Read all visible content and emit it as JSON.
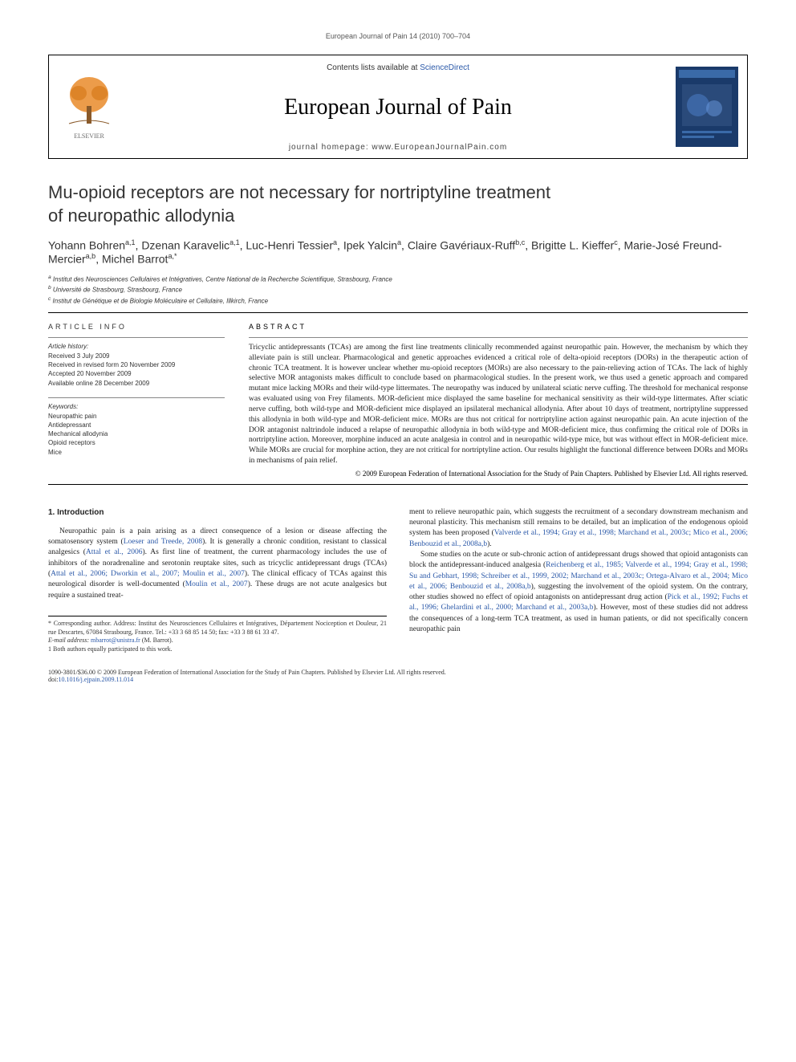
{
  "running_header": "European Journal of Pain 14 (2010) 700–704",
  "masthead": {
    "contents_prefix": "Contents lists available at ",
    "contents_link": "ScienceDirect",
    "journal_title": "European Journal of Pain",
    "homepage_label": "journal homepage: www.EuropeanJournalPain.com",
    "elsevier_tree_color": "#e98b2a",
    "elsevier_text_color": "#6b6b6b",
    "cover_bg": "#1a3a6a",
    "cover_accent": "#3a6aa8"
  },
  "article": {
    "title_line1": "Mu-opioid receptors are not necessary for nortriptyline treatment",
    "title_line2": "of neuropathic allodynia",
    "authors_html": "Yohann Bohren<sup>a,1</sup>, Dzenan Karavelic<sup>a,1</sup>, Luc-Henri Tessier<sup>a</sup>, Ipek Yalcin<sup>a</sup>, Claire Gavériaux-Ruff<sup>b,c</sup>, Brigitte L. Kieffer<sup>c</sup>, Marie-José Freund-Mercier<sup>a,b</sup>, Michel Barrot<sup>a,*</sup>",
    "affiliations": [
      "a Institut des Neurosciences Cellulaires et Intégratives, Centre National de la Recherche Scientifique, Strasbourg, France",
      "b Université de Strasbourg, Strasbourg, France",
      "c Institut de Génétique et de Biologie Moléculaire et Cellulaire, Illkirch, France"
    ]
  },
  "info": {
    "label": "ARTICLE INFO",
    "history_label": "Article history:",
    "dates": [
      "Received 3 July 2009",
      "Received in revised form 20 November 2009",
      "Accepted 20 November 2009",
      "Available online 28 December 2009"
    ],
    "kw_label": "Keywords:",
    "keywords": [
      "Neuropathic pain",
      "Antidepressant",
      "Mechanical allodynia",
      "Opioid receptors",
      "Mice"
    ]
  },
  "abstract": {
    "label": "ABSTRACT",
    "text": "Tricyclic antidepressants (TCAs) are among the first line treatments clinically recommended against neuropathic pain. However, the mechanism by which they alleviate pain is still unclear. Pharmacological and genetic approaches evidenced a critical role of delta-opioid receptors (DORs) in the therapeutic action of chronic TCA treatment. It is however unclear whether mu-opioid receptors (MORs) are also necessary to the pain-relieving action of TCAs. The lack of highly selective MOR antagonists makes difficult to conclude based on pharmacological studies. In the present work, we thus used a genetic approach and compared mutant mice lacking MORs and their wild-type littermates. The neuropathy was induced by unilateral sciatic nerve cuffing. The threshold for mechanical response was evaluated using von Frey filaments. MOR-deficient mice displayed the same baseline for mechanical sensitivity as their wild-type littermates. After sciatic nerve cuffing, both wild-type and MOR-deficient mice displayed an ipsilateral mechanical allodynia. After about 10 days of treatment, nortriptyline suppressed this allodynia in both wild-type and MOR-deficient mice. MORs are thus not critical for nortriptyline action against neuropathic pain. An acute injection of the DOR antagonist naltrindole induced a relapse of neuropathic allodynia in both wild-type and MOR-deficient mice, thus confirming the critical role of DORs in nortriptyline action. Moreover, morphine induced an acute analgesia in control and in neuropathic wild-type mice, but was without effect in MOR-deficient mice. While MORs are crucial for morphine action, they are not critical for nortriptyline action. Our results highlight the functional difference between DORs and MORs in mechanisms of pain relief.",
    "copyright": "© 2009 European Federation of International Association for the Study of Pain Chapters. Published by Elsevier Ltd. All rights reserved."
  },
  "body": {
    "section1_heading": "1. Introduction",
    "col1_p1_a": "Neuropathic pain is a pain arising as a direct consequence of a lesion or disease affecting the somatosensory system (",
    "col1_p1_link1": "Loeser and Treede, 2008",
    "col1_p1_b": "). It is generally a chronic condition, resistant to classical analgesics (",
    "col1_p1_link2": "Attal et al., 2006",
    "col1_p1_c": "). As first line of treatment, the current pharmacology includes the use of inhibitors of the noradrenaline and serotonin reuptake sites, such as tricyclic antidepressant drugs (TCAs) (",
    "col1_p1_link3": "Attal et al., 2006; Dworkin et al., 2007; Moulin et al., 2007",
    "col1_p1_d": "). The clinical efficacy of TCAs against this neurological disorder is well-documented (",
    "col1_p1_link4": "Moulin et al., 2007",
    "col1_p1_e": "). These drugs are not acute analgesics but require a sustained treat-",
    "col2_p1_a": "ment to relieve neuropathic pain, which suggests the recruitment of a secondary downstream mechanism and neuronal plasticity. This mechanism still remains to be detailed, but an implication of the endogenous opioid system has been proposed (",
    "col2_p1_link1": "Valverde et al., 1994; Gray et al., 1998; Marchand et al., 2003c; Mico et al., 2006; Benbouzid et al., 2008a,b",
    "col2_p1_b": ").",
    "col2_p2_a": "Some studies on the acute or sub-chronic action of antidepressant drugs showed that opioid antagonists can block the antidepressant-induced analgesia (",
    "col2_p2_link1": "Reichenberg et al., 1985; Valverde et al., 1994; Gray et al., 1998; Su and Gebhart, 1998; Schreiber et al., 1999, 2002; Marchand et al., 2003c; Ortega-Alvaro et al., 2004; Mico et al., 2006; Benbouzid et al., 2008a,b",
    "col2_p2_b": "), suggesting the involvement of the opioid system. On the contrary, other studies showed no effect of opioid antagonists on antidepressant drug action (",
    "col2_p2_link2": "Pick et al., 1992; Fuchs et al., 1996; Ghelardini et al., 2000; Marchand et al., 2003a,b",
    "col2_p2_c": "). However, most of these studies did not address the consequences of a long-term TCA treatment, as used in human patients, or did not specifically concern neuropathic pain"
  },
  "footnotes": {
    "corr": "* Corresponding author. Address: Institut des Neurosciences Cellulaires et Intégratives, Département Nociception et Douleur, 21 rue Descartes, 67084 Strasbourg, France. Tel.: +33 3 68 85 14 50; fax: +33 3 88 61 33 47.",
    "email_label": "E-mail address: ",
    "email": "mbarrot@unistra.fr",
    "email_who": " (M. Barrot).",
    "equal": "1 Both authors equally participated to this work."
  },
  "footer": {
    "copyright": "1090-3801/$36.00 © 2009 European Federation of International Association for the Study of Pain Chapters. Published by Elsevier Ltd. All rights reserved.",
    "doi_label": "doi:",
    "doi": "10.1016/j.ejpain.2009.11.014"
  },
  "colors": {
    "link": "#2a58a8",
    "text": "#222222",
    "rule": "#000000"
  }
}
